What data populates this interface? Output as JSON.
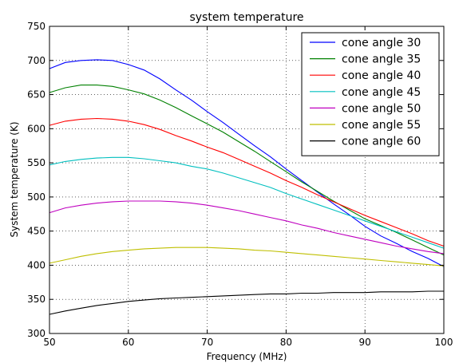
{
  "chart_data": {
    "type": "line",
    "title": "system temperature",
    "xlabel": "Frequency (MHz)",
    "ylabel": "System temperature (K)",
    "xlim": [
      50,
      100
    ],
    "ylim": [
      300,
      750
    ],
    "xticks": [
      50,
      60,
      70,
      80,
      90,
      100
    ],
    "yticks": [
      300,
      350,
      400,
      450,
      500,
      550,
      600,
      650,
      700,
      750
    ],
    "grid": true,
    "legend": "top-right",
    "series": [
      {
        "name": "cone angle 30",
        "color": "#0000ff",
        "x": [
          50,
          52,
          54,
          56,
          58,
          60,
          62,
          64,
          66,
          68,
          70,
          72,
          74,
          76,
          78,
          80,
          82,
          84,
          86,
          88,
          90,
          92,
          94,
          96,
          98,
          100
        ],
        "y": [
          688,
          697,
          700,
          701,
          700,
          694,
          686,
          673,
          657,
          642,
          625,
          609,
          592,
          575,
          559,
          541,
          524,
          507,
          490,
          474,
          457,
          443,
          432,
          420,
          410,
          398
        ]
      },
      {
        "name": "cone angle 35",
        "color": "#008000",
        "x": [
          50,
          52,
          54,
          56,
          58,
          60,
          62,
          64,
          66,
          68,
          70,
          72,
          74,
          76,
          78,
          80,
          82,
          84,
          86,
          88,
          90,
          92,
          94,
          96,
          98,
          100
        ],
        "y": [
          653,
          660,
          664,
          664,
          662,
          657,
          651,
          642,
          631,
          619,
          607,
          595,
          581,
          567,
          552,
          537,
          522,
          508,
          494,
          481,
          468,
          458,
          448,
          437,
          426,
          415
        ]
      },
      {
        "name": "cone angle 40",
        "color": "#ff0000",
        "x": [
          50,
          52,
          54,
          56,
          58,
          60,
          62,
          64,
          66,
          68,
          70,
          72,
          74,
          76,
          78,
          80,
          82,
          84,
          86,
          88,
          90,
          92,
          94,
          96,
          98,
          100
        ],
        "y": [
          605,
          611,
          614,
          615,
          614,
          611,
          606,
          599,
          590,
          582,
          573,
          565,
          555,
          545,
          535,
          524,
          514,
          503,
          493,
          483,
          473,
          464,
          455,
          446,
          436,
          428
        ]
      },
      {
        "name": "cone angle 45",
        "color": "#00bfbf",
        "x": [
          50,
          52,
          54,
          56,
          58,
          60,
          62,
          64,
          66,
          68,
          70,
          72,
          74,
          76,
          78,
          80,
          82,
          84,
          86,
          88,
          90,
          92,
          94,
          96,
          98,
          100
        ],
        "y": [
          547,
          552,
          555,
          557,
          558,
          558,
          556,
          553,
          550,
          545,
          541,
          535,
          528,
          521,
          514,
          505,
          497,
          489,
          481,
          473,
          465,
          457,
          449,
          441,
          433,
          425
        ]
      },
      {
        "name": "cone angle 50",
        "color": "#bf00bf",
        "x": [
          50,
          52,
          54,
          56,
          58,
          60,
          62,
          64,
          66,
          68,
          70,
          72,
          74,
          76,
          78,
          80,
          82,
          84,
          86,
          88,
          90,
          92,
          94,
          96,
          98,
          100
        ],
        "y": [
          477,
          484,
          488,
          491,
          493,
          494,
          494,
          494,
          493,
          491,
          488,
          484,
          480,
          475,
          470,
          465,
          459,
          454,
          448,
          443,
          438,
          433,
          428,
          424,
          420,
          417
        ]
      },
      {
        "name": "cone angle 55",
        "color": "#bfbf00",
        "x": [
          50,
          52,
          54,
          56,
          58,
          60,
          62,
          64,
          66,
          68,
          70,
          72,
          74,
          76,
          78,
          80,
          82,
          84,
          86,
          88,
          90,
          92,
          94,
          96,
          98,
          100
        ],
        "y": [
          403,
          408,
          413,
          417,
          420,
          422,
          424,
          425,
          426,
          426,
          426,
          425,
          424,
          422,
          421,
          419,
          417,
          415,
          413,
          411,
          409,
          407,
          405,
          403,
          401,
          399
        ]
      },
      {
        "name": "cone angle 60",
        "color": "#000000",
        "x": [
          50,
          52,
          54,
          56,
          58,
          60,
          62,
          64,
          66,
          68,
          70,
          72,
          74,
          76,
          78,
          80,
          82,
          84,
          86,
          88,
          90,
          92,
          94,
          96,
          98,
          100
        ],
        "y": [
          328,
          333,
          337,
          341,
          344,
          347,
          349,
          351,
          352,
          353,
          354,
          355,
          356,
          357,
          358,
          358,
          359,
          359,
          360,
          360,
          360,
          361,
          361,
          361,
          362,
          362
        ]
      }
    ]
  }
}
